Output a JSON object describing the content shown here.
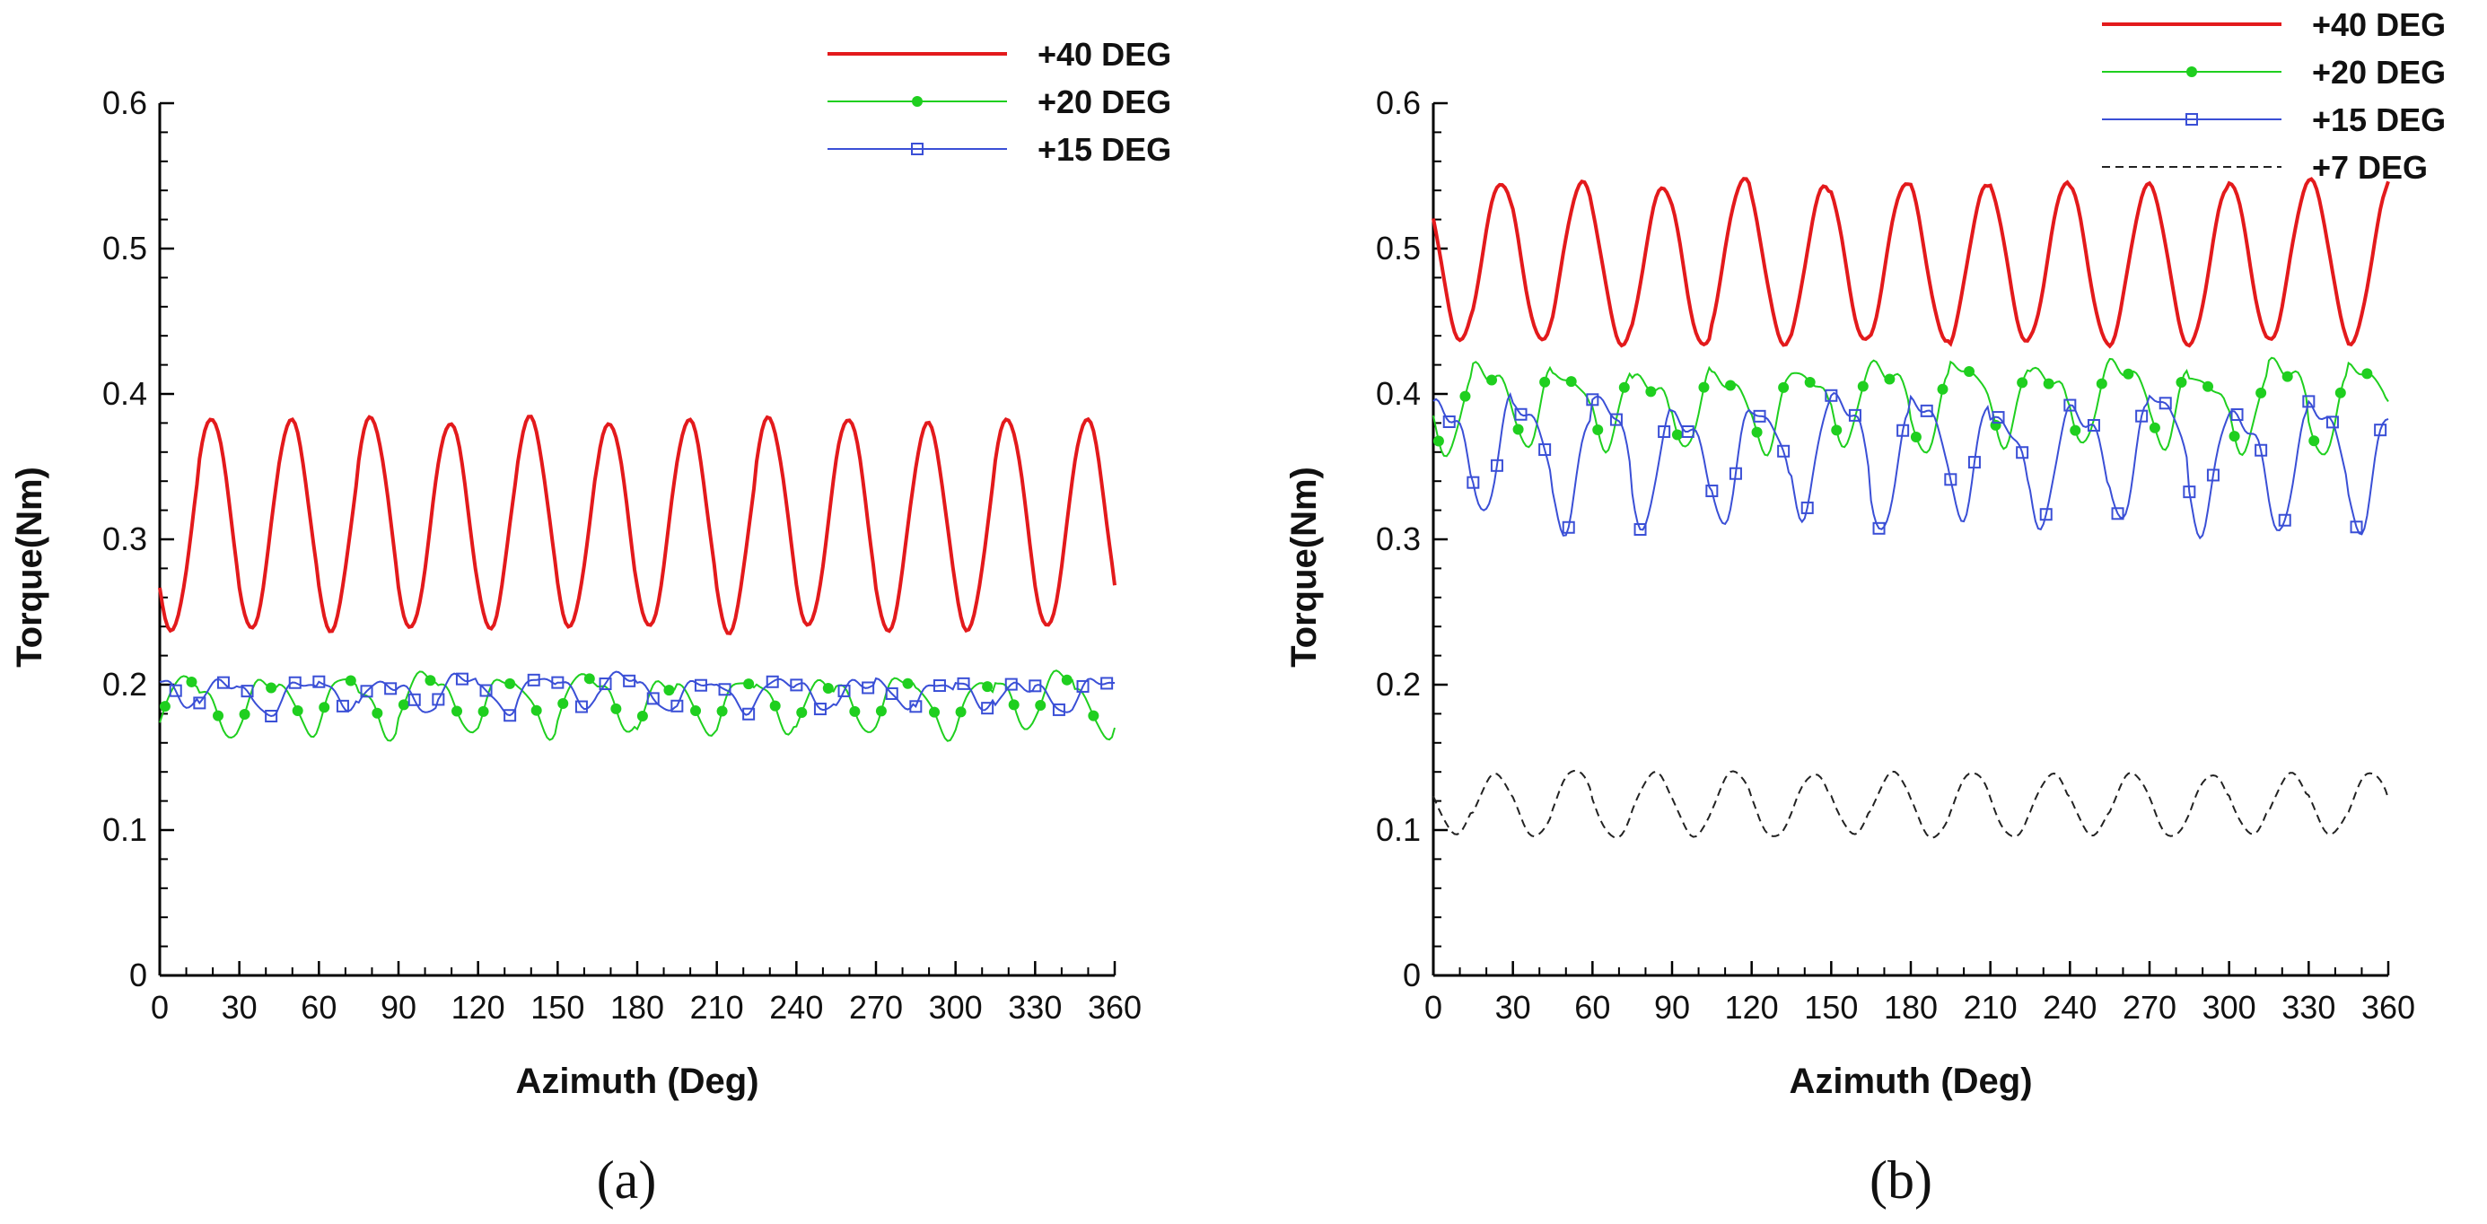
{
  "chart_data": [
    {
      "type": "line",
      "panel_label": "(a)",
      "xlabel": "Azimuth (Deg)",
      "ylabel": "Torque(Nm)",
      "xlim": [
        0,
        360
      ],
      "ylim": [
        0,
        0.6
      ],
      "xticks": [
        "0",
        "30",
        "60",
        "90",
        "120",
        "150",
        "180",
        "210",
        "240",
        "270",
        "300",
        "330",
        "360"
      ],
      "yticks": [
        "0",
        "0.1",
        "0.2",
        "0.3",
        "0.4",
        "0.5",
        "0.6"
      ],
      "legend_position": "top-right",
      "series": [
        {
          "name": "+40 DEG",
          "color": "#e31a1c",
          "style": "solid-thick",
          "marker": "none",
          "period_deg": 30,
          "center": 0.31,
          "amp": 0.071,
          "phase_deg": 12,
          "noise": 0.003,
          "seed": 3
        },
        {
          "name": "+20 DEG",
          "color": "#1fcf1f",
          "style": "solid",
          "marker": "dot",
          "period_deg": 30,
          "center": 0.189,
          "amp": 0.018,
          "phase_deg": 4,
          "noise": 0.004,
          "seed": 7,
          "harmonic": 0.006
        },
        {
          "name": "+15 DEG",
          "color": "#3a4fd6",
          "style": "solid",
          "marker": "square",
          "period_deg": 30,
          "center": 0.195,
          "amp": 0.01,
          "phase_deg": 18,
          "noise": 0.004,
          "seed": 11,
          "harmonic": 0.004
        }
      ]
    },
    {
      "type": "line",
      "panel_label": "(b)",
      "xlabel": "Azimuth (Deg)",
      "ylabel": "Torque(Nm)",
      "xlim": [
        0,
        360
      ],
      "ylim": [
        0,
        0.6
      ],
      "xticks": [
        "0",
        "30",
        "60",
        "90",
        "120",
        "150",
        "180",
        "210",
        "240",
        "270",
        "300",
        "330",
        "360"
      ],
      "yticks": [
        "0",
        "0.1",
        "0.2",
        "0.3",
        "0.4",
        "0.5",
        "0.6"
      ],
      "legend_position": "top-right",
      "series": [
        {
          "name": "+40 DEG",
          "color": "#e31a1c",
          "style": "solid-thick",
          "marker": "none",
          "period_deg": 30.5,
          "center": 0.49,
          "amp": 0.055,
          "phase_deg": 18,
          "noise": 0.003,
          "seed": 5
        },
        {
          "name": "+20 DEG",
          "color": "#1fcf1f",
          "style": "solid",
          "marker": "dot",
          "period_deg": 30,
          "center": 0.395,
          "amp": 0.025,
          "phase_deg": 12,
          "noise": 0.006,
          "seed": 9,
          "harmonic": 0.01
        },
        {
          "name": "+15 DEG",
          "color": "#3a4fd6",
          "style": "solid",
          "marker": "square",
          "period_deg": 30,
          "center": 0.36,
          "amp": 0.038,
          "phase_deg": 26,
          "noise": 0.008,
          "seed": 13,
          "harmonic": 0.012
        },
        {
          "name": "+7 DEG",
          "color": "#222222",
          "style": "dashed",
          "marker": "none",
          "period_deg": 30,
          "center": 0.118,
          "amp": 0.022,
          "phase_deg": 16,
          "noise": 0.002,
          "seed": 17
        }
      ]
    }
  ]
}
